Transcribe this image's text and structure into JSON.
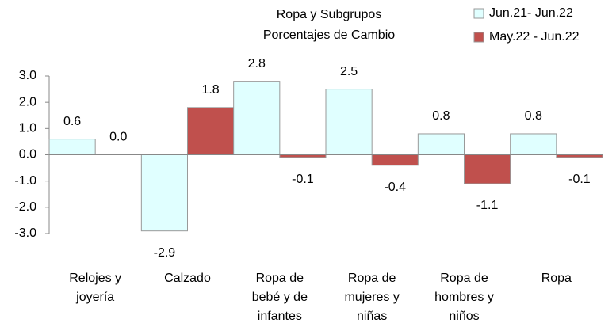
{
  "chart_data": {
    "type": "bar",
    "title": "Ropa y Subgrupos",
    "subtitle": "Porcentajes de Cambio",
    "categories": [
      "Relojes y joyería",
      "Calzado",
      "Ropa de bebé y de infantes",
      "Ropa de mujeres y niñas",
      "Ropa de hombres y niños",
      "Ropa"
    ],
    "series": [
      {
        "name": "Jun.21- Jun.22",
        "color": "#e0ffff",
        "values": [
          0.6,
          -2.9,
          2.8,
          2.5,
          0.8,
          0.8
        ]
      },
      {
        "name": "May.22 - Jun.22",
        "color": "#c0504d",
        "values": [
          0,
          1.8,
          -0.1,
          -0.4,
          -1.1,
          -0.1
        ],
        "value_labels": [
          "0.0",
          "1.8",
          "-0.1",
          "-0.4",
          "-1.1",
          "-0.1"
        ]
      }
    ],
    "ylim": [
      -3,
      3
    ],
    "yticks": [
      {
        "value": 3,
        "label": "3.0"
      },
      {
        "value": 2,
        "label": "2.0"
      },
      {
        "value": 1,
        "label": "1.0"
      },
      {
        "value": 0,
        "label": "0.0"
      },
      {
        "value": -1,
        "label": "-1.0"
      },
      {
        "value": -2,
        "label": "-2.0"
      },
      {
        "value": -3,
        "label": "-3.0"
      }
    ],
    "grid": false,
    "legend": "top-right"
  }
}
